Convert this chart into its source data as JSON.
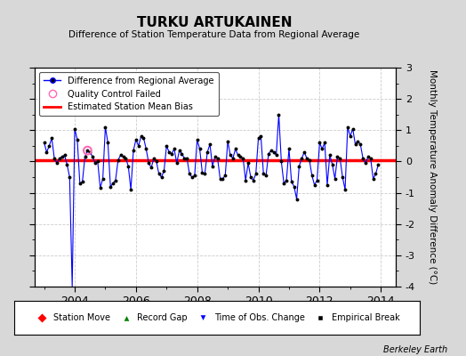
{
  "title": "TURKU ARTUKAINEN",
  "subtitle": "Difference of Station Temperature Data from Regional Average",
  "ylabel": "Monthly Temperature Anomaly Difference (°C)",
  "ylim": [
    -4,
    3
  ],
  "yticks": [
    -4,
    -3,
    -2,
    -1,
    0,
    1,
    2,
    3
  ],
  "xlim": [
    2002.7,
    2014.5
  ],
  "bg_color": "#d8d8d8",
  "plot_bg_color": "#ffffff",
  "line_color": "#0000ff",
  "bias_color": "#ff0000",
  "marker_color": "#000000",
  "qc_color": "#ff69b4",
  "bias_value": 0.03,
  "berkeley_earth_text": "Berkeley Earth",
  "time_series": [
    [
      2003.0,
      0.6
    ],
    [
      2003.083,
      0.3
    ],
    [
      2003.167,
      0.5
    ],
    [
      2003.25,
      0.75
    ],
    [
      2003.333,
      0.1
    ],
    [
      2003.417,
      -0.05
    ],
    [
      2003.5,
      0.1
    ],
    [
      2003.583,
      0.15
    ],
    [
      2003.667,
      0.2
    ],
    [
      2003.75,
      -0.1
    ],
    [
      2003.833,
      -0.5
    ],
    [
      2003.917,
      -4.0
    ],
    [
      2004.0,
      1.05
    ],
    [
      2004.083,
      0.7
    ],
    [
      2004.167,
      -0.7
    ],
    [
      2004.25,
      -0.65
    ],
    [
      2004.333,
      0.15
    ],
    [
      2004.417,
      0.35
    ],
    [
      2004.5,
      0.3
    ],
    [
      2004.583,
      0.15
    ],
    [
      2004.667,
      -0.05
    ],
    [
      2004.75,
      0.0
    ],
    [
      2004.833,
      -0.85
    ],
    [
      2004.917,
      -0.55
    ],
    [
      2005.0,
      1.1
    ],
    [
      2005.083,
      0.6
    ],
    [
      2005.167,
      -0.8
    ],
    [
      2005.25,
      -0.7
    ],
    [
      2005.333,
      -0.6
    ],
    [
      2005.417,
      0.05
    ],
    [
      2005.5,
      0.2
    ],
    [
      2005.583,
      0.15
    ],
    [
      2005.667,
      0.1
    ],
    [
      2005.75,
      -0.15
    ],
    [
      2005.833,
      -0.9
    ],
    [
      2005.917,
      0.35
    ],
    [
      2006.0,
      0.7
    ],
    [
      2006.083,
      0.5
    ],
    [
      2006.167,
      0.8
    ],
    [
      2006.25,
      0.75
    ],
    [
      2006.333,
      0.4
    ],
    [
      2006.417,
      -0.05
    ],
    [
      2006.5,
      -0.2
    ],
    [
      2006.583,
      0.1
    ],
    [
      2006.667,
      0.0
    ],
    [
      2006.75,
      -0.4
    ],
    [
      2006.833,
      -0.5
    ],
    [
      2006.917,
      -0.3
    ],
    [
      2007.0,
      0.5
    ],
    [
      2007.083,
      0.3
    ],
    [
      2007.167,
      0.25
    ],
    [
      2007.25,
      0.4
    ],
    [
      2007.333,
      -0.05
    ],
    [
      2007.417,
      0.35
    ],
    [
      2007.5,
      0.25
    ],
    [
      2007.583,
      0.1
    ],
    [
      2007.667,
      0.1
    ],
    [
      2007.75,
      -0.4
    ],
    [
      2007.833,
      -0.5
    ],
    [
      2007.917,
      -0.45
    ],
    [
      2008.0,
      0.7
    ],
    [
      2008.083,
      0.4
    ],
    [
      2008.167,
      -0.35
    ],
    [
      2008.25,
      -0.4
    ],
    [
      2008.333,
      0.3
    ],
    [
      2008.417,
      0.55
    ],
    [
      2008.5,
      -0.15
    ],
    [
      2008.583,
      0.15
    ],
    [
      2008.667,
      0.1
    ],
    [
      2008.75,
      -0.55
    ],
    [
      2008.833,
      -0.55
    ],
    [
      2008.917,
      -0.45
    ],
    [
      2009.0,
      0.65
    ],
    [
      2009.083,
      0.2
    ],
    [
      2009.167,
      0.1
    ],
    [
      2009.25,
      0.4
    ],
    [
      2009.333,
      0.2
    ],
    [
      2009.417,
      0.15
    ],
    [
      2009.5,
      0.1
    ],
    [
      2009.583,
      -0.6
    ],
    [
      2009.667,
      -0.05
    ],
    [
      2009.75,
      -0.5
    ],
    [
      2009.833,
      -0.6
    ],
    [
      2009.917,
      -0.4
    ],
    [
      2010.0,
      0.75
    ],
    [
      2010.083,
      0.8
    ],
    [
      2010.167,
      -0.4
    ],
    [
      2010.25,
      -0.45
    ],
    [
      2010.333,
      0.25
    ],
    [
      2010.417,
      0.35
    ],
    [
      2010.5,
      0.3
    ],
    [
      2010.583,
      0.2
    ],
    [
      2010.667,
      1.5
    ],
    [
      2010.75,
      0.0
    ],
    [
      2010.833,
      -0.7
    ],
    [
      2010.917,
      -0.6
    ],
    [
      2011.0,
      0.4
    ],
    [
      2011.083,
      -0.65
    ],
    [
      2011.167,
      -0.8
    ],
    [
      2011.25,
      -1.2
    ],
    [
      2011.333,
      -0.15
    ],
    [
      2011.417,
      0.1
    ],
    [
      2011.5,
      0.3
    ],
    [
      2011.583,
      0.1
    ],
    [
      2011.667,
      0.05
    ],
    [
      2011.75,
      -0.45
    ],
    [
      2011.833,
      -0.75
    ],
    [
      2011.917,
      -0.6
    ],
    [
      2012.0,
      0.6
    ],
    [
      2012.083,
      0.4
    ],
    [
      2012.167,
      0.6
    ],
    [
      2012.25,
      -0.75
    ],
    [
      2012.333,
      0.2
    ],
    [
      2012.417,
      -0.1
    ],
    [
      2012.5,
      -0.55
    ],
    [
      2012.583,
      0.15
    ],
    [
      2012.667,
      0.1
    ],
    [
      2012.75,
      -0.5
    ],
    [
      2012.833,
      -0.9
    ],
    [
      2012.917,
      1.1
    ],
    [
      2013.0,
      0.8
    ],
    [
      2013.083,
      1.05
    ],
    [
      2013.167,
      0.55
    ],
    [
      2013.25,
      0.65
    ],
    [
      2013.333,
      0.55
    ],
    [
      2013.417,
      0.1
    ],
    [
      2013.5,
      -0.05
    ],
    [
      2013.583,
      0.15
    ],
    [
      2013.667,
      0.1
    ],
    [
      2013.75,
      -0.55
    ],
    [
      2013.833,
      -0.4
    ],
    [
      2013.917,
      -0.1
    ]
  ],
  "qc_failed": [
    [
      2004.417,
      0.35
    ]
  ],
  "gap_indices": [
    11
  ]
}
